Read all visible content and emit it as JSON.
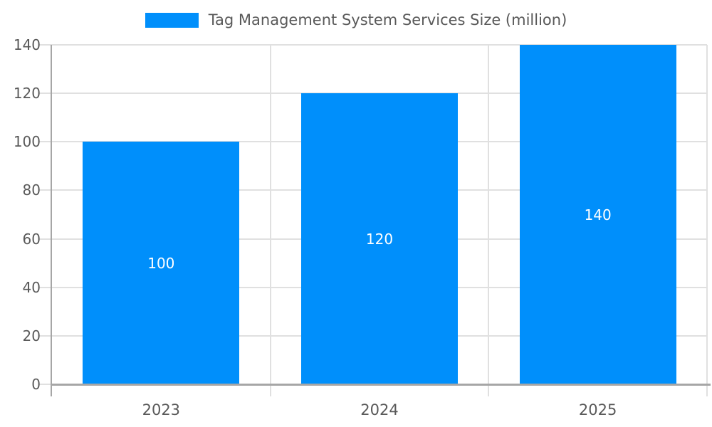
{
  "chart_data": {
    "type": "bar",
    "categories": [
      "2023",
      "2024",
      "2025"
    ],
    "series": [
      {
        "name": "Tag Management System Services Size (million)",
        "values": [
          100,
          120,
          140
        ]
      }
    ],
    "value_labels": [
      "100",
      "120",
      "140"
    ],
    "xlabel": "",
    "ylabel": "",
    "ylim": [
      0,
      140
    ],
    "ytick_step": 20,
    "ytick_labels": [
      "0",
      "20",
      "40",
      "60",
      "80",
      "100",
      "120",
      "140"
    ],
    "grid": true,
    "legend_position": "top",
    "colors": {
      "bar": "#008FFB",
      "value_label": "#ffffff",
      "axis_text": "#595959",
      "axis_line": "#a6a6a6",
      "gridline": "#e0e0e0",
      "background": "#ffffff"
    }
  }
}
